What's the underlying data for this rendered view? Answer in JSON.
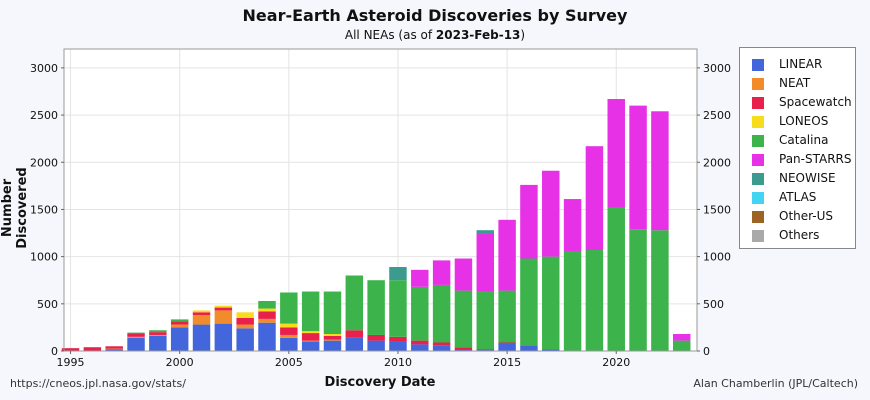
{
  "header": {
    "title": "Near-Earth Asteroid Discoveries by Survey",
    "subtitle_prefix": "All NEAs (as of ",
    "subtitle_date": "2023-Feb-13",
    "subtitle_suffix": ")"
  },
  "footer": {
    "source_url": "https://cneos.jpl.nasa.gov/stats/",
    "credit": "Alan Chamberlin (JPL/Caltech)"
  },
  "chart_data": {
    "type": "bar",
    "stacked": true,
    "title": "Near-Earth Asteroid Discoveries by Survey",
    "subtitle": "All NEAs (as of 2023-Feb-13)",
    "xlabel": "Discovery Date",
    "ylabel": "Number Discovered",
    "ylim": [
      0,
      3200
    ],
    "yticks": [
      0,
      500,
      1000,
      1500,
      2000,
      2500,
      3000
    ],
    "xticks": [
      1995,
      2000,
      2005,
      2010,
      2015,
      2020
    ],
    "grid": true,
    "legend_position": "right",
    "categories": [
      1995,
      1996,
      1997,
      1998,
      1999,
      2000,
      2001,
      2002,
      2003,
      2004,
      2005,
      2006,
      2007,
      2008,
      2009,
      2010,
      2011,
      2012,
      2013,
      2014,
      2015,
      2016,
      2017,
      2018,
      2019,
      2020,
      2021,
      2022,
      2023
    ],
    "series": [
      {
        "name": "LINEAR",
        "color": "#4466dd",
        "values": [
          0,
          0,
          20,
          140,
          160,
          250,
          280,
          290,
          240,
          300,
          140,
          100,
          110,
          140,
          110,
          100,
          70,
          60,
          10,
          10,
          80,
          60,
          20,
          0,
          0,
          0,
          0,
          0,
          0
        ]
      },
      {
        "name": "NEAT",
        "color": "#f28c2b",
        "values": [
          0,
          0,
          5,
          10,
          10,
          30,
          100,
          140,
          40,
          40,
          30,
          10,
          10,
          0,
          0,
          0,
          0,
          0,
          0,
          0,
          0,
          0,
          0,
          0,
          0,
          0,
          0,
          0,
          0
        ]
      },
      {
        "name": "Spacewatch",
        "color": "#e8204c",
        "values": [
          30,
          40,
          25,
          35,
          30,
          35,
          30,
          30,
          70,
          80,
          80,
          80,
          40,
          80,
          60,
          50,
          40,
          30,
          30,
          10,
          10,
          0,
          0,
          0,
          0,
          0,
          0,
          0,
          0
        ]
      },
      {
        "name": "LONEOS",
        "color": "#f7dc1b",
        "values": [
          0,
          0,
          0,
          0,
          0,
          0,
          20,
          20,
          60,
          30,
          40,
          20,
          20,
          0,
          0,
          0,
          0,
          0,
          0,
          0,
          0,
          0,
          0,
          0,
          0,
          0,
          0,
          0,
          0
        ]
      },
      {
        "name": "Catalina",
        "color": "#3cb44b",
        "values": [
          0,
          0,
          0,
          10,
          20,
          20,
          0,
          0,
          0,
          80,
          330,
          420,
          450,
          580,
          580,
          600,
          570,
          610,
          600,
          610,
          550,
          920,
          980,
          1060,
          1070,
          1520,
          1290,
          1280,
          110
        ]
      },
      {
        "name": "Pan-STARRS",
        "color": "#e631e6",
        "values": [
          0,
          0,
          0,
          0,
          0,
          0,
          0,
          0,
          0,
          0,
          0,
          0,
          0,
          0,
          0,
          0,
          180,
          260,
          340,
          610,
          750,
          780,
          910,
          550,
          1100,
          1150,
          1310,
          1260,
          70
        ]
      },
      {
        "name": "NEOWISE",
        "color": "#3b9b8e",
        "values": [
          0,
          0,
          0,
          0,
          0,
          0,
          0,
          0,
          0,
          0,
          0,
          0,
          0,
          0,
          0,
          140,
          0,
          0,
          0,
          40,
          0,
          0,
          0,
          0,
          0,
          0,
          0,
          0,
          0
        ]
      },
      {
        "name": "ATLAS",
        "color": "#43d4f2",
        "values": [
          0,
          0,
          0,
          0,
          0,
          0,
          0,
          0,
          0,
          0,
          0,
          0,
          0,
          0,
          0,
          0,
          0,
          0,
          0,
          0,
          0,
          0,
          0,
          0,
          0,
          0,
          0,
          0,
          0
        ]
      },
      {
        "name": "Other-US",
        "color": "#9b6424",
        "values": [
          0,
          0,
          0,
          0,
          0,
          0,
          0,
          0,
          0,
          0,
          0,
          0,
          0,
          0,
          0,
          0,
          0,
          0,
          0,
          0,
          0,
          0,
          0,
          0,
          0,
          0,
          0,
          0,
          0
        ]
      },
      {
        "name": "Others",
        "color": "#a9a9a9",
        "values": [
          0,
          0,
          0,
          0,
          0,
          0,
          0,
          0,
          0,
          0,
          0,
          0,
          0,
          0,
          0,
          0,
          0,
          0,
          0,
          0,
          0,
          0,
          0,
          0,
          0,
          0,
          0,
          0,
          0
        ]
      }
    ]
  }
}
